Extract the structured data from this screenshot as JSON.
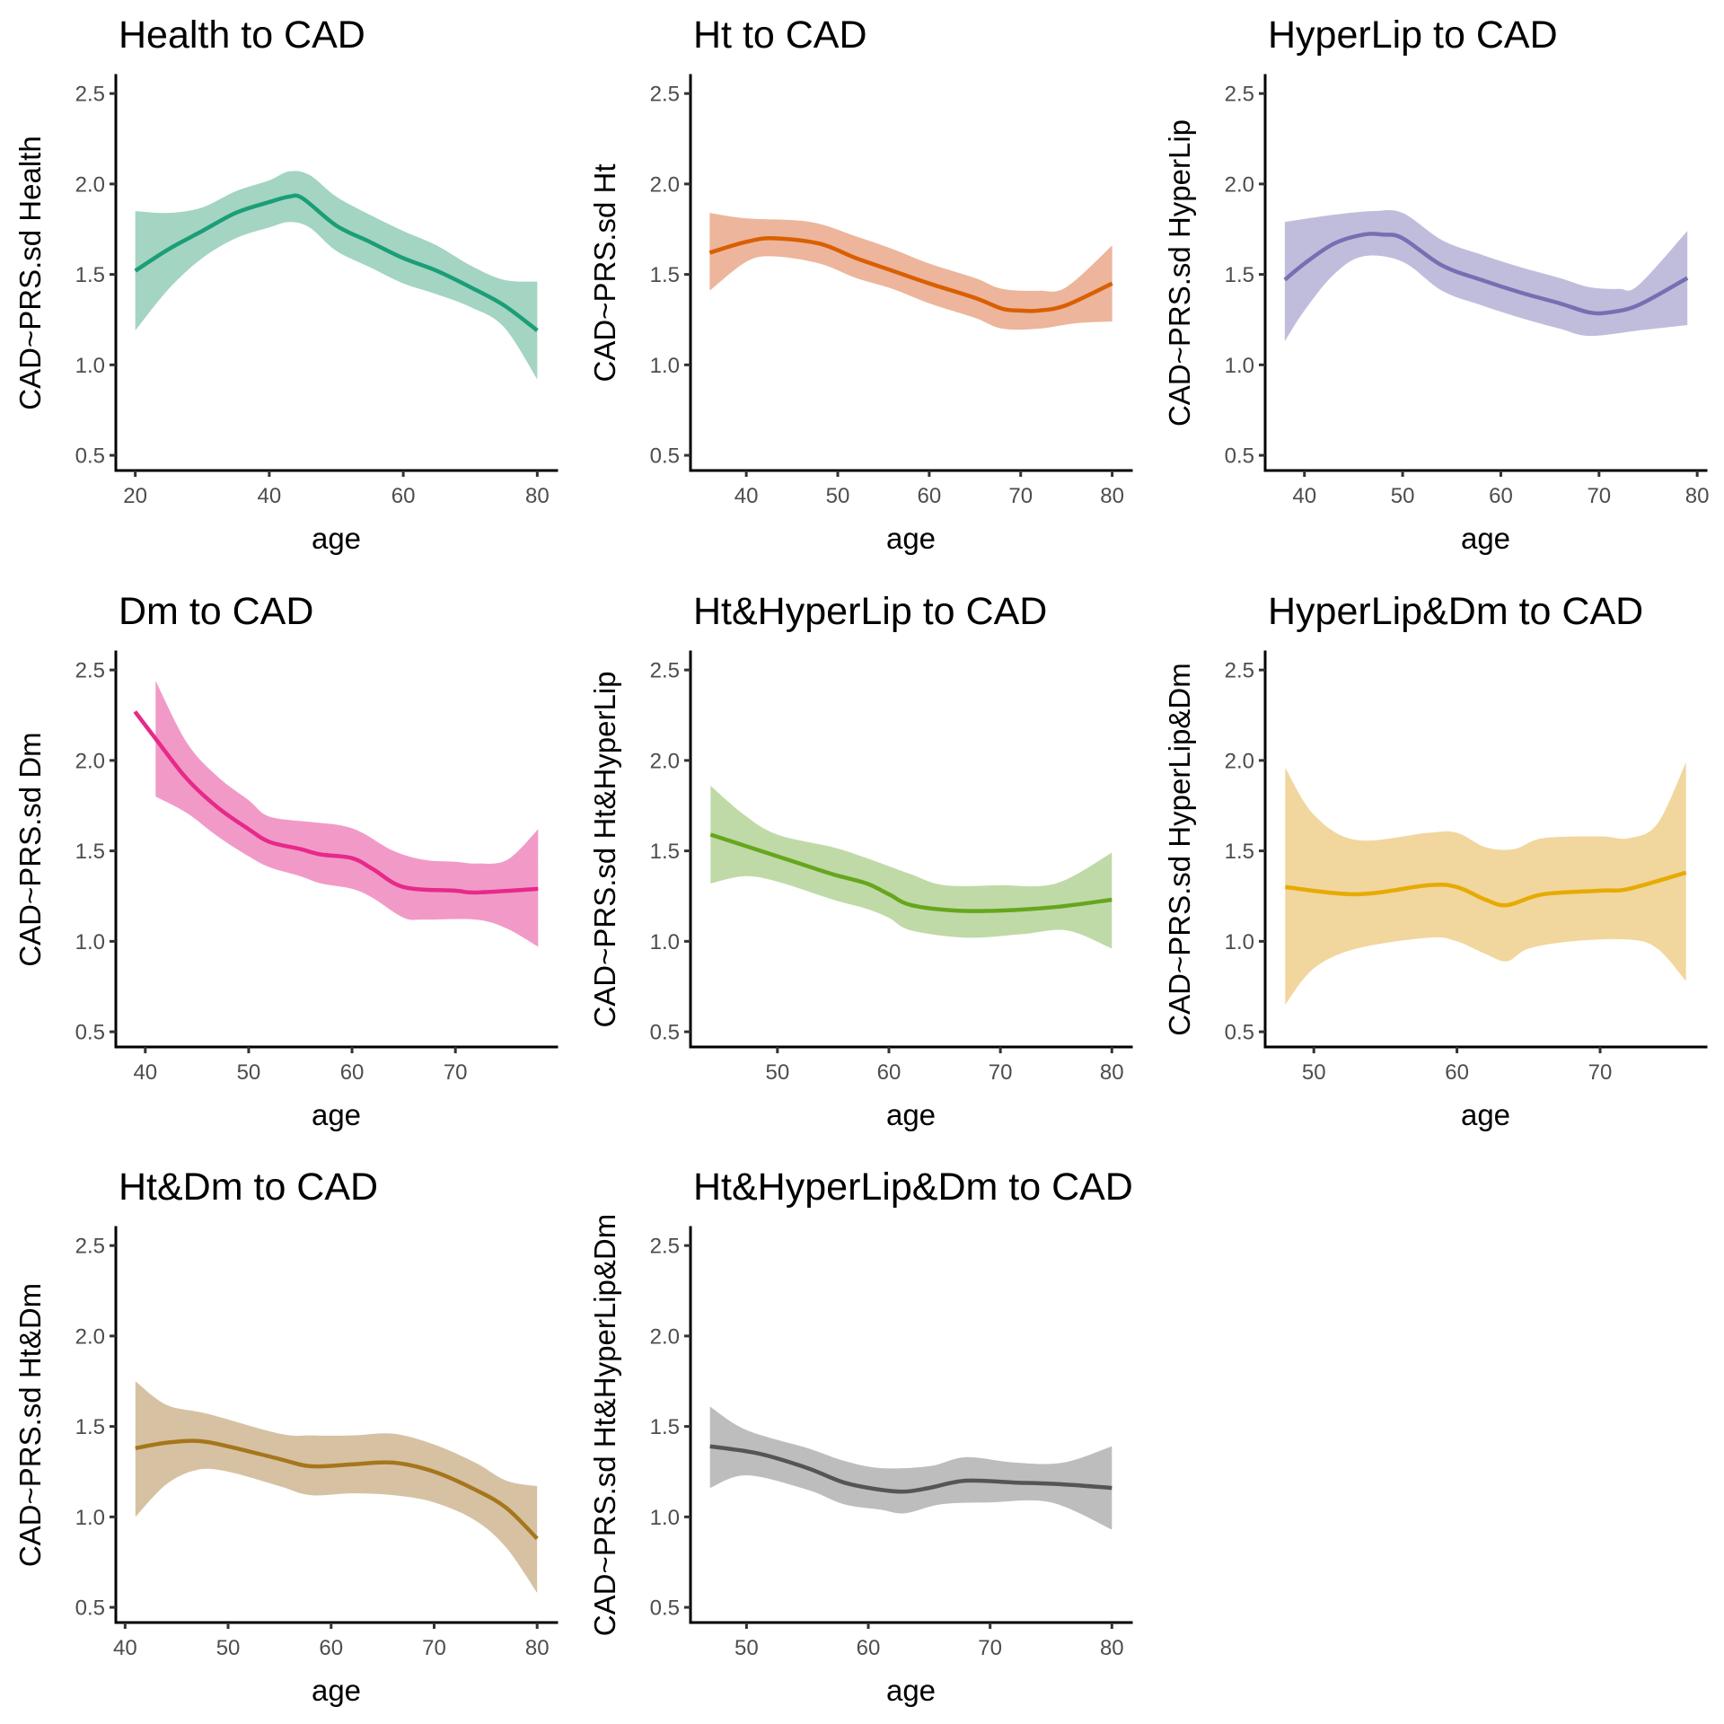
{
  "chart_data": [
    {
      "type": "line",
      "title": "Health to CAD",
      "xlabel": "age",
      "ylabel": "CAD~PRS.sd Health",
      "color": "#1B9E77",
      "ribbon_color": "#A4D4C2",
      "xlim": [
        17.1,
        82.9
      ],
      "ylim": [
        0.416,
        2.6
      ],
      "xticks": [
        20,
        40,
        60,
        80
      ],
      "yticks": [
        0.5,
        1.0,
        1.5,
        2.0,
        2.5
      ],
      "ytick_labels": [
        "0.5",
        "1.0",
        "1.5",
        "2.0",
        "2.5"
      ],
      "line": {
        "x": [
          20,
          25,
          30,
          35,
          40,
          43,
          45,
          50,
          55,
          60,
          65,
          70,
          75,
          80
        ],
        "y": [
          1.52,
          1.64,
          1.74,
          1.84,
          1.9,
          1.93,
          1.92,
          1.77,
          1.68,
          1.59,
          1.52,
          1.43,
          1.33,
          1.19
        ]
      },
      "upper": {
        "x": [
          20,
          25,
          30,
          35,
          40,
          43,
          46,
          50,
          55,
          60,
          65,
          70,
          75,
          80
        ],
        "y": [
          1.85,
          1.84,
          1.87,
          1.96,
          2.02,
          2.07,
          2.05,
          1.93,
          1.83,
          1.74,
          1.66,
          1.55,
          1.47,
          1.46
        ]
      },
      "lower": {
        "x": [
          20,
          25,
          30,
          35,
          40,
          43,
          46,
          50,
          55,
          60,
          65,
          70,
          75,
          80
        ],
        "y": [
          1.19,
          1.42,
          1.59,
          1.7,
          1.76,
          1.79,
          1.76,
          1.63,
          1.54,
          1.45,
          1.39,
          1.32,
          1.21,
          0.92
        ]
      }
    },
    {
      "type": "line",
      "title": "Ht to CAD",
      "xlabel": "age",
      "ylabel": "CAD~PRS.sd Ht",
      "color": "#D95F02",
      "ribbon_color": "#EDB59B",
      "xlim": [
        33.9,
        82.1
      ],
      "ylim": [
        0.416,
        2.6
      ],
      "xticks": [
        40,
        50,
        60,
        70,
        80
      ],
      "yticks": [
        0.5,
        1.0,
        1.5,
        2.0,
        2.5
      ],
      "ytick_labels": [
        "0.5",
        "1.0",
        "1.5",
        "2.0",
        "2.5"
      ],
      "line": {
        "x": [
          36,
          40,
          43,
          48,
          52,
          56,
          60,
          65,
          68,
          70,
          72,
          75,
          80
        ],
        "y": [
          1.62,
          1.68,
          1.7,
          1.67,
          1.59,
          1.52,
          1.45,
          1.37,
          1.31,
          1.3,
          1.3,
          1.33,
          1.45
        ]
      },
      "upper": {
        "x": [
          36,
          40,
          47,
          52,
          56,
          60,
          65,
          68,
          72,
          75,
          80
        ],
        "y": [
          1.84,
          1.81,
          1.79,
          1.71,
          1.64,
          1.56,
          1.48,
          1.42,
          1.41,
          1.43,
          1.66
        ]
      },
      "lower": {
        "x": [
          36,
          40,
          43,
          48,
          52,
          56,
          60,
          65,
          68,
          72,
          76,
          80
        ],
        "y": [
          1.41,
          1.57,
          1.6,
          1.56,
          1.48,
          1.42,
          1.34,
          1.26,
          1.2,
          1.2,
          1.23,
          1.24
        ]
      }
    },
    {
      "type": "line",
      "title": "HyperLip to CAD",
      "xlabel": "age",
      "ylabel": "CAD~PRS.sd HyperLip",
      "color": "#7570B3",
      "ribbon_color": "#C0BDDC",
      "xlim": [
        36.0,
        80.9
      ],
      "ylim": [
        0.416,
        2.6
      ],
      "xticks": [
        40,
        50,
        60,
        70,
        80
      ],
      "yticks": [
        0.5,
        1.0,
        1.5,
        2.0,
        2.5
      ],
      "ytick_labels": [
        "0.5",
        "1.0",
        "1.5",
        "2.0",
        "2.5"
      ],
      "line": {
        "x": [
          38,
          40,
          43,
          46,
          48,
          50,
          54,
          58,
          62,
          66,
          69,
          71,
          74,
          79
        ],
        "y": [
          1.47,
          1.56,
          1.67,
          1.72,
          1.72,
          1.7,
          1.55,
          1.47,
          1.4,
          1.34,
          1.29,
          1.29,
          1.33,
          1.48
        ]
      },
      "upper": {
        "x": [
          38,
          43,
          47,
          50,
          54,
          58,
          62,
          66,
          69,
          72,
          74,
          79
        ],
        "y": [
          1.79,
          1.83,
          1.85,
          1.84,
          1.69,
          1.61,
          1.54,
          1.48,
          1.43,
          1.42,
          1.44,
          1.74
        ]
      },
      "lower": {
        "x": [
          38,
          40,
          43,
          46,
          50,
          54,
          58,
          62,
          66,
          69,
          74,
          79
        ],
        "y": [
          1.13,
          1.3,
          1.5,
          1.6,
          1.57,
          1.41,
          1.33,
          1.26,
          1.2,
          1.16,
          1.19,
          1.22
        ]
      }
    },
    {
      "type": "line",
      "title": "Dm to CAD",
      "xlabel": "age",
      "ylabel": "CAD~PRS.sd Dm",
      "color": "#E7298A",
      "ribbon_color": "#F29AC7",
      "xlim": [
        37.15,
        79.8
      ],
      "ylim": [
        0.416,
        2.6
      ],
      "xticks": [
        40,
        50,
        60,
        70
      ],
      "yticks": [
        0.5,
        1.0,
        1.5,
        2.0,
        2.5
      ],
      "ytick_labels": [
        "0.5",
        "1.0",
        "1.5",
        "2.0",
        "2.5"
      ],
      "line": {
        "x": [
          39,
          41,
          44,
          47,
          50,
          52,
          55,
          57,
          60,
          62,
          65,
          70,
          72,
          78
        ],
        "y": [
          2.27,
          2.12,
          1.9,
          1.74,
          1.62,
          1.55,
          1.51,
          1.48,
          1.46,
          1.4,
          1.3,
          1.28,
          1.27,
          1.29
        ]
      },
      "upper": {
        "x": [
          41,
          44,
          47,
          50,
          52,
          56,
          59,
          61,
          64,
          67,
          70,
          72,
          75,
          78
        ],
        "y": [
          2.44,
          2.1,
          1.91,
          1.78,
          1.69,
          1.66,
          1.64,
          1.6,
          1.5,
          1.45,
          1.44,
          1.43,
          1.45,
          1.62
        ]
      },
      "lower": {
        "x": [
          41,
          44,
          47,
          50,
          52,
          55,
          57,
          60,
          62,
          65,
          67,
          72,
          75,
          78
        ],
        "y": [
          1.8,
          1.71,
          1.58,
          1.47,
          1.41,
          1.36,
          1.32,
          1.29,
          1.24,
          1.13,
          1.12,
          1.12,
          1.07,
          0.97
        ]
      }
    },
    {
      "type": "line",
      "title": "Ht&HyperLip to CAD",
      "xlabel": "age",
      "ylabel": "CAD~PRS.sd Ht&HyperLip",
      "color": "#66A61E",
      "ribbon_color": "#BFDAA6",
      "xlim": [
        42.2,
        81.75
      ],
      "ylim": [
        0.416,
        2.6
      ],
      "xticks": [
        50,
        60,
        70,
        80
      ],
      "yticks": [
        0.5,
        1.0,
        1.5,
        2.0,
        2.5
      ],
      "ytick_labels": [
        "0.5",
        "1.0",
        "1.5",
        "2.0",
        "2.5"
      ],
      "line": {
        "x": [
          44,
          48,
          52,
          55,
          58,
          60,
          62,
          66,
          70,
          75,
          80
        ],
        "y": [
          1.59,
          1.51,
          1.43,
          1.37,
          1.32,
          1.26,
          1.2,
          1.17,
          1.17,
          1.19,
          1.23
        ]
      },
      "upper": {
        "x": [
          44,
          47,
          50,
          55,
          58,
          62,
          65,
          70,
          75,
          80
        ],
        "y": [
          1.86,
          1.7,
          1.59,
          1.52,
          1.46,
          1.37,
          1.31,
          1.31,
          1.32,
          1.49
        ]
      },
      "lower": {
        "x": [
          44,
          47,
          50,
          55,
          58,
          60,
          62,
          67,
          72,
          76,
          80
        ],
        "y": [
          1.32,
          1.36,
          1.33,
          1.23,
          1.18,
          1.13,
          1.06,
          1.02,
          1.04,
          1.06,
          0.96
        ]
      }
    },
    {
      "type": "line",
      "title": "HyperLip&Dm to CAD",
      "xlabel": "age",
      "ylabel": "CAD~PRS.sd HyperLip&Dm",
      "color": "#E6AB02",
      "ribbon_color": "#F1D69E",
      "xlim": [
        46.6,
        77.4
      ],
      "ylim": [
        0.416,
        2.6
      ],
      "xticks": [
        50,
        60,
        70
      ],
      "yticks": [
        0.5,
        1.0,
        1.5,
        2.0,
        2.5
      ],
      "ytick_labels": [
        "0.5",
        "1.0",
        "1.5",
        "2.0",
        "2.5"
      ],
      "line": {
        "x": [
          48,
          53,
          58,
          60,
          62,
          63.5,
          66,
          70,
          72,
          76
        ],
        "y": [
          1.3,
          1.26,
          1.31,
          1.3,
          1.23,
          1.2,
          1.26,
          1.28,
          1.29,
          1.38
        ]
      },
      "upper": {
        "x": [
          48,
          50,
          53,
          58,
          60,
          62,
          64,
          66,
          70,
          72,
          74,
          76
        ],
        "y": [
          1.96,
          1.7,
          1.56,
          1.6,
          1.6,
          1.52,
          1.51,
          1.57,
          1.58,
          1.57,
          1.65,
          1.99
        ]
      },
      "lower": {
        "x": [
          48,
          50,
          53,
          58,
          60,
          62,
          63.5,
          65,
          68,
          72,
          74,
          76
        ],
        "y": [
          0.65,
          0.85,
          0.96,
          1.02,
          1.0,
          0.93,
          0.89,
          0.96,
          1.0,
          1.01,
          0.96,
          0.78
        ]
      }
    },
    {
      "type": "line",
      "title": "Ht&Dm to CAD",
      "xlabel": "age",
      "ylabel": "CAD~PRS.sd Ht&Dm",
      "color": "#A6761D",
      "ribbon_color": "#D6C2A2",
      "xlim": [
        39.1,
        81.9
      ],
      "ylim": [
        0.416,
        2.6
      ],
      "xticks": [
        40,
        50,
        60,
        70,
        80
      ],
      "yticks": [
        0.5,
        1.0,
        1.5,
        2.0,
        2.5
      ],
      "ytick_labels": [
        "0.5",
        "1.0",
        "1.5",
        "2.0",
        "2.5"
      ],
      "line": {
        "x": [
          41,
          44,
          47,
          50,
          55,
          58,
          62,
          66,
          70,
          74,
          77,
          80
        ],
        "y": [
          1.38,
          1.41,
          1.42,
          1.39,
          1.32,
          1.28,
          1.29,
          1.3,
          1.25,
          1.15,
          1.05,
          0.88
        ]
      },
      "upper": {
        "x": [
          41,
          44,
          48,
          55,
          58,
          62,
          66,
          70,
          74,
          77,
          80
        ],
        "y": [
          1.75,
          1.62,
          1.57,
          1.46,
          1.45,
          1.45,
          1.46,
          1.4,
          1.3,
          1.2,
          1.17
        ]
      },
      "lower": {
        "x": [
          41,
          44,
          47,
          50,
          55,
          58,
          62,
          66,
          70,
          74,
          77,
          80
        ],
        "y": [
          1.0,
          1.18,
          1.26,
          1.25,
          1.17,
          1.12,
          1.13,
          1.12,
          1.08,
          0.98,
          0.83,
          0.58
        ]
      }
    },
    {
      "type": "line",
      "title": "Ht&HyperLip&Dm to CAD",
      "xlabel": "age",
      "ylabel": "CAD~PRS.sd Ht&HyperLip&Dm",
      "color": "#555555",
      "ribbon_color": "#BDBDBD",
      "xlim": [
        45.4,
        81.6
      ],
      "ylim": [
        0.416,
        2.6
      ],
      "xticks": [
        50,
        60,
        70,
        80
      ],
      "yticks": [
        0.5,
        1.0,
        1.5,
        2.0,
        2.5
      ],
      "ytick_labels": [
        "0.5",
        "1.0",
        "1.5",
        "2.0",
        "2.5"
      ],
      "line": {
        "x": [
          47,
          51,
          55,
          58,
          61,
          63,
          65,
          68,
          72,
          76,
          80
        ],
        "y": [
          1.39,
          1.35,
          1.27,
          1.19,
          1.15,
          1.14,
          1.16,
          1.2,
          1.19,
          1.18,
          1.16
        ]
      },
      "upper": {
        "x": [
          47,
          50,
          55,
          58,
          61,
          65,
          68,
          72,
          76,
          80
        ],
        "y": [
          1.61,
          1.48,
          1.38,
          1.31,
          1.27,
          1.28,
          1.33,
          1.3,
          1.3,
          1.39
        ]
      },
      "lower": {
        "x": [
          47,
          50,
          55,
          58,
          61,
          63,
          66,
          70,
          75,
          80
        ],
        "y": [
          1.16,
          1.23,
          1.15,
          1.07,
          1.04,
          1.02,
          1.07,
          1.08,
          1.08,
          0.93
        ]
      }
    }
  ]
}
